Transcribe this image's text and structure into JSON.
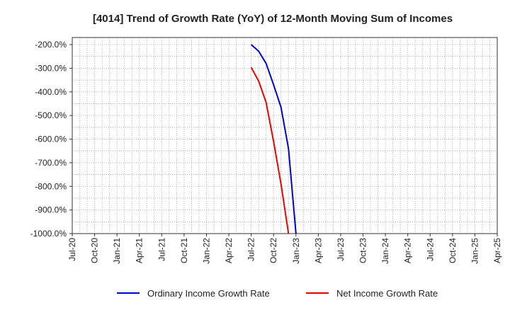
{
  "chart_data": {
    "type": "line",
    "title": "[4014]  Trend of Growth Rate (YoY) of 12-Month Moving Sum of Incomes",
    "xlabel": "",
    "ylabel": "",
    "x_ticks": [
      "Jul-20",
      "Oct-20",
      "Jan-21",
      "Apr-21",
      "Jul-21",
      "Oct-21",
      "Jan-22",
      "Apr-22",
      "Jul-22",
      "Oct-22",
      "Jan-23",
      "Apr-23",
      "Jul-23",
      "Oct-23",
      "Jan-24",
      "Apr-24",
      "Jul-24",
      "Oct-24",
      "Jan-25",
      "Apr-25"
    ],
    "y_ticks": [
      -200,
      -300,
      -400,
      -500,
      -600,
      -700,
      -800,
      -900,
      -1000
    ],
    "y_tick_labels": [
      "-200.0%",
      "-300.0%",
      "-400.0%",
      "-500.0%",
      "-600.0%",
      "-700.0%",
      "-800.0%",
      "-900.0%",
      "-1000.0%"
    ],
    "ylim": [
      -1000,
      -170
    ],
    "grid": true,
    "legend_position": "bottom",
    "series": [
      {
        "name": "Ordinary Income Growth Rate",
        "color": "#0000cc",
        "points": [
          {
            "x": "Jul-22",
            "y": -200
          },
          {
            "x": "Aug-22",
            "y": -228
          },
          {
            "x": "Sep-22",
            "y": -280
          },
          {
            "x": "Oct-22",
            "y": -370
          },
          {
            "x": "Nov-22",
            "y": -465
          },
          {
            "x": "Dec-22",
            "y": -640
          },
          {
            "x": "Jan-23",
            "y": -1000
          }
        ]
      },
      {
        "name": "Net Income Growth Rate",
        "color": "#e60000",
        "points": [
          {
            "x": "Jul-22",
            "y": -296
          },
          {
            "x": "Aug-22",
            "y": -355
          },
          {
            "x": "Sep-22",
            "y": -445
          },
          {
            "x": "Oct-22",
            "y": -610
          },
          {
            "x": "Nov-22",
            "y": -790
          },
          {
            "x": "Dec-22",
            "y": -1000
          }
        ]
      }
    ]
  }
}
